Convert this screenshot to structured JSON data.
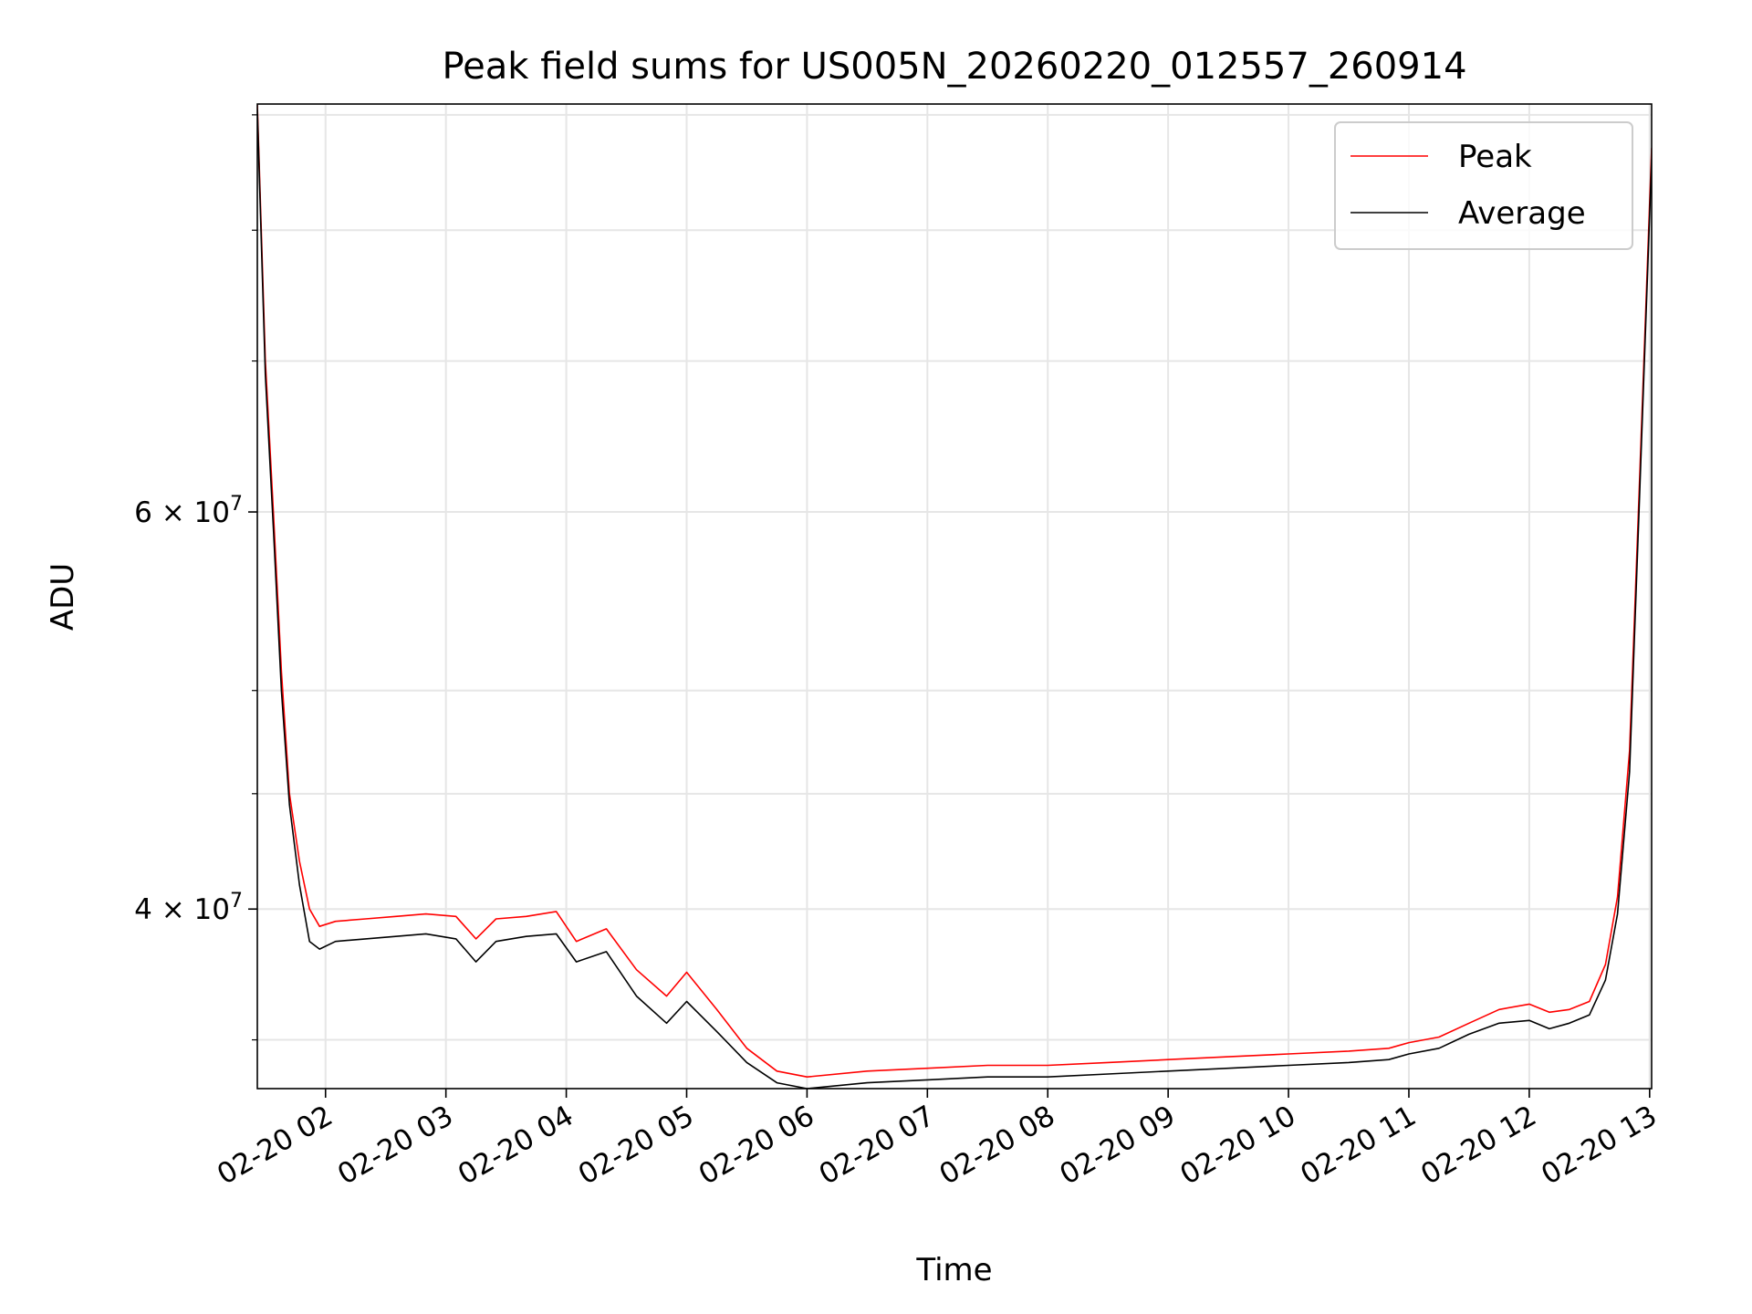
{
  "chart_data": {
    "type": "line",
    "title": "Peak field sums for US005N_20260220_012557_260914",
    "xlabel": "Time",
    "ylabel": "ADU",
    "y_scale": "log",
    "xlim": [
      "2026-02-20 01:26",
      "2026-02-20 13:01"
    ],
    "ylim": [
      33300000,
      91000000
    ],
    "grid": true,
    "legend_placement": "top-right",
    "x_ticks": [
      "2026-02-20 02:00",
      "2026-02-20 03:00",
      "2026-02-20 04:00",
      "2026-02-20 05:00",
      "2026-02-20 06:00",
      "2026-02-20 07:00",
      "2026-02-20 08:00",
      "2026-02-20 09:00",
      "2026-02-20 10:00",
      "2026-02-20 11:00",
      "2026-02-20 12:00",
      "2026-02-20 13:00"
    ],
    "x_tick_labels": [
      "02-20 02",
      "02-20 03",
      "02-20 04",
      "02-20 05",
      "02-20 06",
      "02-20 07",
      "02-20 08",
      "02-20 09",
      "02-20 10",
      "02-20 11",
      "02-20 12",
      "02-20 13"
    ],
    "y_ticks": [
      40000000,
      60000000
    ],
    "y_tick_labels": [
      {
        "mantissa": "4",
        "exp": "7"
      },
      {
        "mantissa": "6",
        "exp": "7"
      }
    ],
    "y_minor_ticks": [
      35000000,
      45000000,
      50000000,
      70000000,
      80000000,
      90000000
    ],
    "series": [
      {
        "name": "Peak",
        "color": "#ff0000",
        "x": [
          "2026-02-20 01:26",
          "2026-02-20 01:30",
          "2026-02-20 01:34",
          "2026-02-20 01:38",
          "2026-02-20 01:42",
          "2026-02-20 01:47",
          "2026-02-20 01:52",
          "2026-02-20 01:57",
          "2026-02-20 02:05",
          "2026-02-20 02:20",
          "2026-02-20 02:35",
          "2026-02-20 02:50",
          "2026-02-20 03:05",
          "2026-02-20 03:15",
          "2026-02-20 03:25",
          "2026-02-20 03:40",
          "2026-02-20 03:55",
          "2026-02-20 04:05",
          "2026-02-20 04:20",
          "2026-02-20 04:35",
          "2026-02-20 04:50",
          "2026-02-20 05:00",
          "2026-02-20 05:15",
          "2026-02-20 05:30",
          "2026-02-20 05:45",
          "2026-02-20 06:00",
          "2026-02-20 06:30",
          "2026-02-20 07:00",
          "2026-02-20 07:30",
          "2026-02-20 08:00",
          "2026-02-20 08:30",
          "2026-02-20 09:00",
          "2026-02-20 09:30",
          "2026-02-20 10:00",
          "2026-02-20 10:30",
          "2026-02-20 10:50",
          "2026-02-20 11:00",
          "2026-02-20 11:15",
          "2026-02-20 11:30",
          "2026-02-20 11:45",
          "2026-02-20 12:00",
          "2026-02-20 12:10",
          "2026-02-20 12:20",
          "2026-02-20 12:30",
          "2026-02-20 12:38",
          "2026-02-20 12:44",
          "2026-02-20 12:50",
          "2026-02-20 12:55",
          "2026-02-20 13:01"
        ],
        "values": [
          91000000,
          70000000,
          60000000,
          51000000,
          45000000,
          42000000,
          40000000,
          39300000,
          39500000,
          39600000,
          39700000,
          39800000,
          39700000,
          38800000,
          39600000,
          39700000,
          39900000,
          38700000,
          39200000,
          37600000,
          36600000,
          37500000,
          36100000,
          34700000,
          33900000,
          33700000,
          33900000,
          34000000,
          34100000,
          34100000,
          34200000,
          34300000,
          34400000,
          34500000,
          34600000,
          34700000,
          34900000,
          35100000,
          35600000,
          36100000,
          36300000,
          36000000,
          36100000,
          36400000,
          37800000,
          40500000,
          47000000,
          62000000,
          87000000
        ]
      },
      {
        "name": "Average",
        "color": "#000000",
        "x": [
          "2026-02-20 01:26",
          "2026-02-20 01:30",
          "2026-02-20 01:34",
          "2026-02-20 01:38",
          "2026-02-20 01:42",
          "2026-02-20 01:47",
          "2026-02-20 01:52",
          "2026-02-20 01:57",
          "2026-02-20 02:05",
          "2026-02-20 02:20",
          "2026-02-20 02:35",
          "2026-02-20 02:50",
          "2026-02-20 03:05",
          "2026-02-20 03:15",
          "2026-02-20 03:25",
          "2026-02-20 03:40",
          "2026-02-20 03:55",
          "2026-02-20 04:05",
          "2026-02-20 04:20",
          "2026-02-20 04:35",
          "2026-02-20 04:50",
          "2026-02-20 05:00",
          "2026-02-20 05:15",
          "2026-02-20 05:30",
          "2026-02-20 05:45",
          "2026-02-20 06:00",
          "2026-02-20 06:30",
          "2026-02-20 07:00",
          "2026-02-20 07:30",
          "2026-02-20 08:00",
          "2026-02-20 08:30",
          "2026-02-20 09:00",
          "2026-02-20 09:30",
          "2026-02-20 10:00",
          "2026-02-20 10:30",
          "2026-02-20 10:50",
          "2026-02-20 11:00",
          "2026-02-20 11:15",
          "2026-02-20 11:30",
          "2026-02-20 11:45",
          "2026-02-20 12:00",
          "2026-02-20 12:10",
          "2026-02-20 12:20",
          "2026-02-20 12:30",
          "2026-02-20 12:38",
          "2026-02-20 12:44",
          "2026-02-20 12:50",
          "2026-02-20 12:55",
          "2026-02-20 13:01"
        ],
        "values": [
          90500000,
          69000000,
          59000000,
          50000000,
          44500000,
          41000000,
          38700000,
          38400000,
          38700000,
          38800000,
          38900000,
          39000000,
          38800000,
          37900000,
          38700000,
          38900000,
          39000000,
          37900000,
          38300000,
          36600000,
          35600000,
          36400000,
          35300000,
          34200000,
          33500000,
          33300000,
          33500000,
          33600000,
          33700000,
          33700000,
          33800000,
          33900000,
          34000000,
          34100000,
          34200000,
          34300000,
          34500000,
          34700000,
          35200000,
          35600000,
          35700000,
          35400000,
          35600000,
          35900000,
          37200000,
          39800000,
          46000000,
          61000000,
          86000000
        ]
      }
    ]
  }
}
